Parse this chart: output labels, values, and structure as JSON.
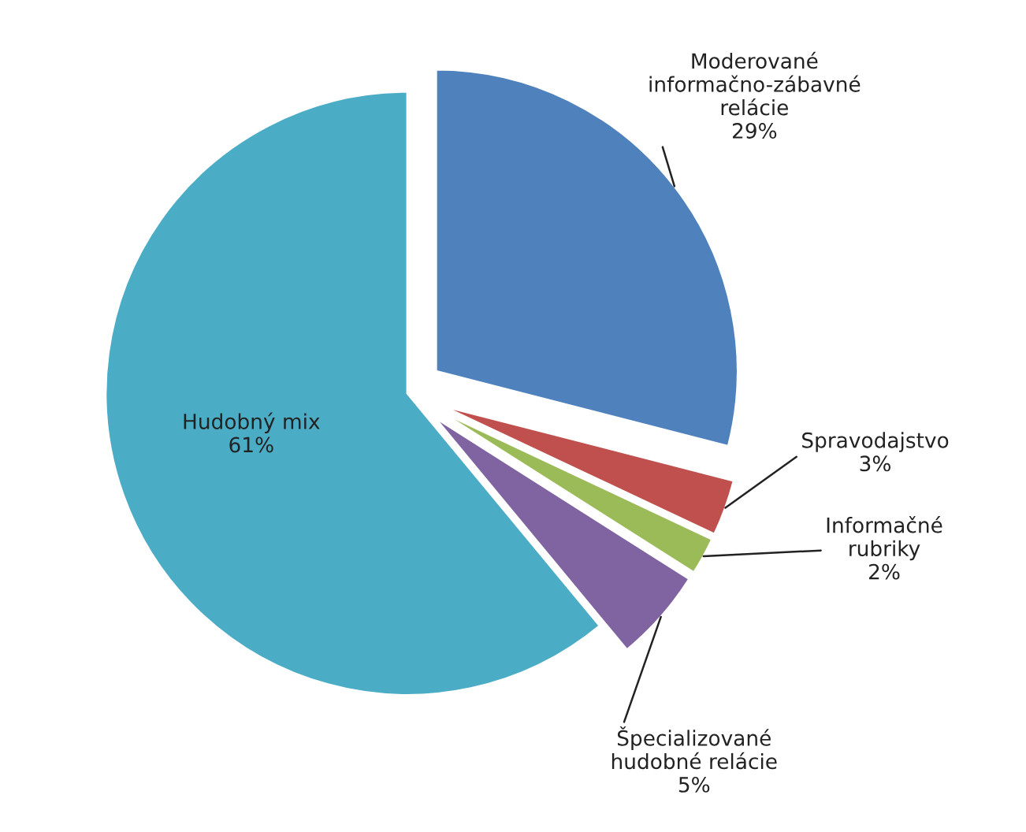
{
  "chart_data": {
    "type": "pie",
    "categories": [
      "Moderované informačno-zábavné relácie",
      "Spravodajstvo",
      "Informačné rubriky",
      "Špecializované hudobné relácie",
      "Hudobný mix"
    ],
    "values": [
      29,
      3,
      2,
      5,
      61
    ],
    "value_labels": [
      "29%",
      "3%",
      "2%",
      "5%",
      "61%"
    ],
    "colors": [
      "#4f81bd",
      "#c0504d",
      "#9bbb59",
      "#8064a2",
      "#4bacc6"
    ]
  }
}
